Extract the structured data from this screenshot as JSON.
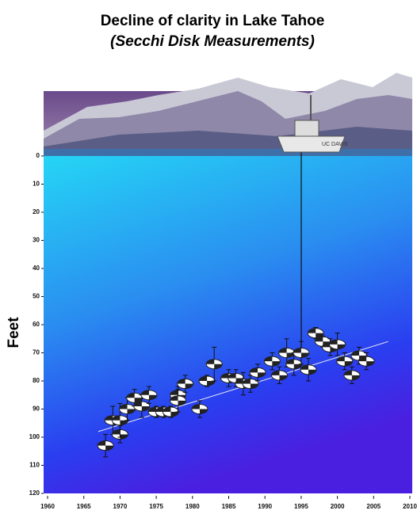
{
  "chart_data": {
    "type": "scatter",
    "title": "Decline of clarity in Lake Tahoe",
    "subtitle": "(Secchi Disk Measurements)",
    "y_label": "Feet",
    "annotation": "UC DAVIS",
    "x": [
      1968,
      1969,
      1970,
      1970,
      1971,
      1972,
      1973,
      1974,
      1975,
      1976,
      1977,
      1978,
      1978,
      1979,
      1981,
      1982,
      1983,
      1985,
      1986,
      1987,
      1988,
      1989,
      1991,
      1992,
      1993,
      1994,
      1995,
      1996,
      1997,
      1998,
      1999,
      2000,
      2001,
      2002,
      2003,
      2004
    ],
    "values": [
      103,
      94,
      99,
      94,
      90,
      86,
      89,
      85,
      91,
      91,
      91,
      85,
      87,
      81,
      90,
      80,
      74,
      79,
      79,
      81,
      81,
      77,
      73,
      78,
      70,
      74,
      70,
      76,
      63,
      66,
      68,
      67,
      73,
      78,
      71,
      73
    ],
    "errors": [
      4,
      5,
      3,
      6,
      4,
      3,
      4,
      3,
      2,
      2,
      2,
      3,
      4,
      3,
      3,
      2,
      6,
      3,
      3,
      4,
      3,
      3,
      3,
      3,
      5,
      4,
      4,
      4,
      2,
      2,
      3,
      4,
      3,
      3,
      3,
      3
    ],
    "marker_color": "#ffffff",
    "trendline": {
      "x": [
        1967,
        2007
      ],
      "y": [
        98,
        66
      ],
      "color": "#f0f0f0"
    },
    "xlim": [
      1960,
      2010
    ],
    "xticks": [
      1960,
      1965,
      1970,
      1975,
      1980,
      1985,
      1990,
      1995,
      2000,
      2005,
      2010
    ],
    "ylim": [
      0,
      120
    ],
    "yticks": [
      0,
      10,
      20,
      30,
      40,
      50,
      60,
      70,
      80,
      90,
      100,
      110,
      120
    ],
    "y_inverted": true
  }
}
